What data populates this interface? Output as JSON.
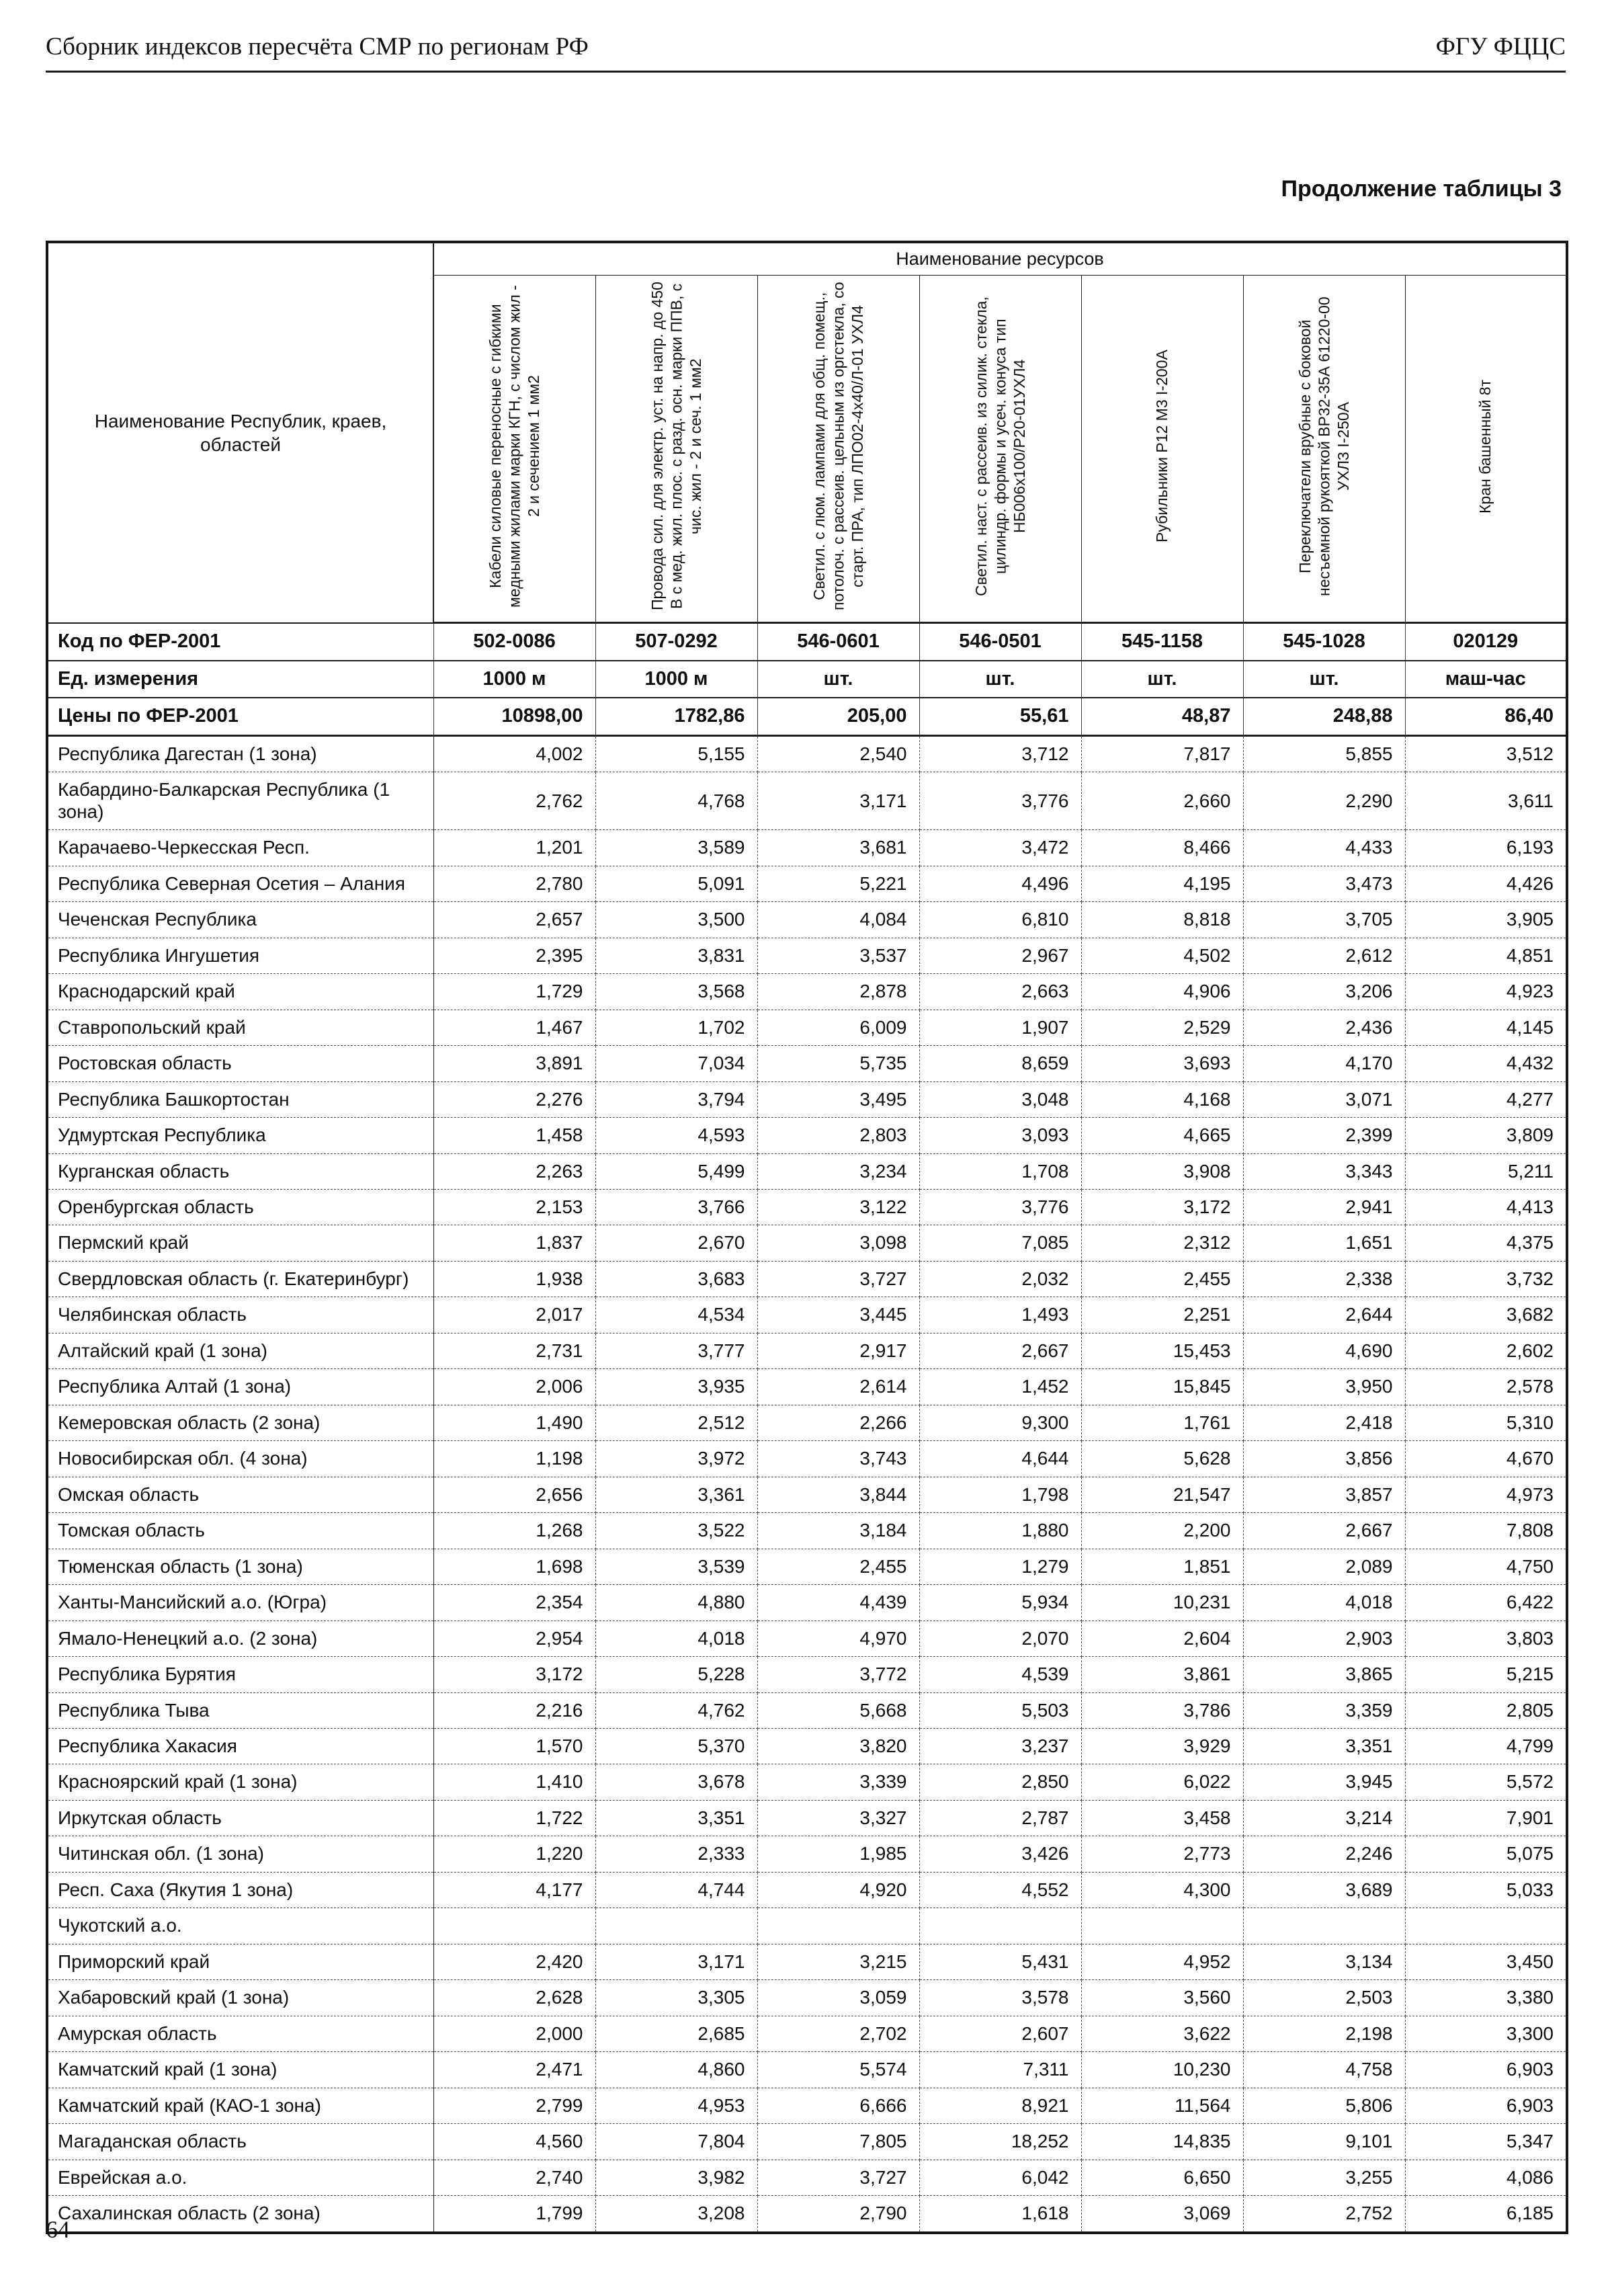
{
  "page": {
    "header_left": "Сборник индексов пересчёта СМР  по регионам РФ",
    "header_right": "ФГУ ФЦЦС",
    "caption": "Продолжение таблицы 3",
    "page_number": "64"
  },
  "table": {
    "region_header": "Наименование Республик, краев, областей",
    "resources_header": "Наименование ресурсов",
    "column_headers": [
      "Кабели силовые переносные с гибкими медными жилами марки КГН, с числом жил - 2 и сечением 1 мм2",
      "Провода сил. для электр. уст. на напр. до 450 В с мед. жил. плос. с разд. осн. марки ППВ, с чис. жил - 2 и сеч. 1 мм2",
      "Светил. с люм. лампами для общ. помещ., потолоч. с рассеив. цельным из оргстекла, со старт. ПРА, тип ЛПО02-4х40/Л-01 УХЛ4",
      "Светил. наст. с рассеив. из силик. стекла, цилиндр. формы и усеч. конуса тип НБ006х100/Р20-01УХЛ4",
      "Рубильники Р12 М3 I-200А",
      "Переключатели врубные с боковой несъемной рукояткой ВР32-35А 61220-00 УХЛ3 I-250А",
      "Кран башенный 8т"
    ],
    "meta_rows": [
      {
        "label": "Код по ФЕР-2001",
        "align": "c",
        "values": [
          "502-0086",
          "507-0292",
          "546-0601",
          "546-0501",
          "545-1158",
          "545-1028",
          "020129"
        ]
      },
      {
        "label": "Ед. измерения",
        "align": "c",
        "values": [
          "1000 м",
          "1000 м",
          "шт.",
          "шт.",
          "шт.",
          "шт.",
          "маш-час"
        ]
      },
      {
        "label": "Цены по ФЕР-2001",
        "align": "r",
        "values": [
          "10898,00",
          "1782,86",
          "205,00",
          "55,61",
          "48,87",
          "248,88",
          "86,40"
        ]
      }
    ],
    "rows": [
      {
        "region": "Республика Дагестан (1 зона)",
        "values": [
          "4,002",
          "5,155",
          "2,540",
          "3,712",
          "7,817",
          "5,855",
          "3,512"
        ]
      },
      {
        "region": "Кабардино-Балкарская Республика (1 зона)",
        "values": [
          "2,762",
          "4,768",
          "3,171",
          "3,776",
          "2,660",
          "2,290",
          "3,611"
        ]
      },
      {
        "region": "Карачаево-Черкесская Респ.",
        "values": [
          "1,201",
          "3,589",
          "3,681",
          "3,472",
          "8,466",
          "4,433",
          "6,193"
        ]
      },
      {
        "region": "Республика Северная Осетия – Алания",
        "values": [
          "2,780",
          "5,091",
          "5,221",
          "4,496",
          "4,195",
          "3,473",
          "4,426"
        ]
      },
      {
        "region": "Чеченская Республика",
        "values": [
          "2,657",
          "3,500",
          "4,084",
          "6,810",
          "8,818",
          "3,705",
          "3,905"
        ]
      },
      {
        "region": "Республика Ингушетия",
        "values": [
          "2,395",
          "3,831",
          "3,537",
          "2,967",
          "4,502",
          "2,612",
          "4,851"
        ]
      },
      {
        "region": "Краснодарский край",
        "values": [
          "1,729",
          "3,568",
          "2,878",
          "2,663",
          "4,906",
          "3,206",
          "4,923"
        ]
      },
      {
        "region": "Ставропольский край",
        "values": [
          "1,467",
          "1,702",
          "6,009",
          "1,907",
          "2,529",
          "2,436",
          "4,145"
        ]
      },
      {
        "region": "Ростовская область",
        "values": [
          "3,891",
          "7,034",
          "5,735",
          "8,659",
          "3,693",
          "4,170",
          "4,432"
        ]
      },
      {
        "region": "Республика Башкортостан",
        "values": [
          "2,276",
          "3,794",
          "3,495",
          "3,048",
          "4,168",
          "3,071",
          "4,277"
        ]
      },
      {
        "region": "Удмуртская Республика",
        "values": [
          "1,458",
          "4,593",
          "2,803",
          "3,093",
          "4,665",
          "2,399",
          "3,809"
        ]
      },
      {
        "region": "Курганская область",
        "values": [
          "2,263",
          "5,499",
          "3,234",
          "1,708",
          "3,908",
          "3,343",
          "5,211"
        ]
      },
      {
        "region": "Оренбургская область",
        "values": [
          "2,153",
          "3,766",
          "3,122",
          "3,776",
          "3,172",
          "2,941",
          "4,413"
        ]
      },
      {
        "region": "Пермский край",
        "values": [
          "1,837",
          "2,670",
          "3,098",
          "7,085",
          "2,312",
          "1,651",
          "4,375"
        ]
      },
      {
        "region": "Свердловская область (г. Екатеринбург)",
        "values": [
          "1,938",
          "3,683",
          "3,727",
          "2,032",
          "2,455",
          "2,338",
          "3,732"
        ]
      },
      {
        "region": "Челябинская область",
        "values": [
          "2,017",
          "4,534",
          "3,445",
          "1,493",
          "2,251",
          "2,644",
          "3,682"
        ]
      },
      {
        "region": "Алтайский край (1 зона)",
        "values": [
          "2,731",
          "3,777",
          "2,917",
          "2,667",
          "15,453",
          "4,690",
          "2,602"
        ]
      },
      {
        "region": "Республика Алтай (1 зона)",
        "values": [
          "2,006",
          "3,935",
          "2,614",
          "1,452",
          "15,845",
          "3,950",
          "2,578"
        ]
      },
      {
        "region": "Кемеровская область (2 зона)",
        "values": [
          "1,490",
          "2,512",
          "2,266",
          "9,300",
          "1,761",
          "2,418",
          "5,310"
        ]
      },
      {
        "region": "Новосибирская обл. (4 зона)",
        "values": [
          "1,198",
          "3,972",
          "3,743",
          "4,644",
          "5,628",
          "3,856",
          "4,670"
        ]
      },
      {
        "region": "Омская область",
        "values": [
          "2,656",
          "3,361",
          "3,844",
          "1,798",
          "21,547",
          "3,857",
          "4,973"
        ]
      },
      {
        "region": "Томская область",
        "values": [
          "1,268",
          "3,522",
          "3,184",
          "1,880",
          "2,200",
          "2,667",
          "7,808"
        ]
      },
      {
        "region": "Тюменская область (1 зона)",
        "values": [
          "1,698",
          "3,539",
          "2,455",
          "1,279",
          "1,851",
          "2,089",
          "4,750"
        ]
      },
      {
        "region": "Ханты-Мансийский а.о. (Югра)",
        "values": [
          "2,354",
          "4,880",
          "4,439",
          "5,934",
          "10,231",
          "4,018",
          "6,422"
        ]
      },
      {
        "region": "Ямало-Ненецкий а.о. (2 зона)",
        "values": [
          "2,954",
          "4,018",
          "4,970",
          "2,070",
          "2,604",
          "2,903",
          "3,803"
        ]
      },
      {
        "region": "Республика Бурятия",
        "values": [
          "3,172",
          "5,228",
          "3,772",
          "4,539",
          "3,861",
          "3,865",
          "5,215"
        ]
      },
      {
        "region": "Республика Тыва",
        "values": [
          "2,216",
          "4,762",
          "5,668",
          "5,503",
          "3,786",
          "3,359",
          "2,805"
        ]
      },
      {
        "region": "Республика Хакасия",
        "values": [
          "1,570",
          "5,370",
          "3,820",
          "3,237",
          "3,929",
          "3,351",
          "4,799"
        ]
      },
      {
        "region": "Красноярский край (1 зона)",
        "values": [
          "1,410",
          "3,678",
          "3,339",
          "2,850",
          "6,022",
          "3,945",
          "5,572"
        ]
      },
      {
        "region": "Иркутская область",
        "values": [
          "1,722",
          "3,351",
          "3,327",
          "2,787",
          "3,458",
          "3,214",
          "7,901"
        ]
      },
      {
        "region": "Читинская обл. (1 зона)",
        "values": [
          "1,220",
          "2,333",
          "1,985",
          "3,426",
          "2,773",
          "2,246",
          "5,075"
        ]
      },
      {
        "region": "Респ. Саха (Якутия 1 зона)",
        "values": [
          "4,177",
          "4,744",
          "4,920",
          "4,552",
          "4,300",
          "3,689",
          "5,033"
        ]
      },
      {
        "region": "Чукотский а.о.",
        "values": [
          "",
          "",
          "",
          "",
          "",
          "",
          ""
        ]
      },
      {
        "region": "Приморский край",
        "values": [
          "2,420",
          "3,171",
          "3,215",
          "5,431",
          "4,952",
          "3,134",
          "3,450"
        ]
      },
      {
        "region": "Хабаровский край (1 зона)",
        "values": [
          "2,628",
          "3,305",
          "3,059",
          "3,578",
          "3,560",
          "2,503",
          "3,380"
        ]
      },
      {
        "region": "Амурская область",
        "values": [
          "2,000",
          "2,685",
          "2,702",
          "2,607",
          "3,622",
          "2,198",
          "3,300"
        ]
      },
      {
        "region": "Камчатский край (1 зона)",
        "values": [
          "2,471",
          "4,860",
          "5,574",
          "7,311",
          "10,230",
          "4,758",
          "6,903"
        ]
      },
      {
        "region": "Камчатский край (КАО-1 зона)",
        "values": [
          "2,799",
          "4,953",
          "6,666",
          "8,921",
          "11,564",
          "5,806",
          "6,903"
        ]
      },
      {
        "region": "Магаданская область",
        "values": [
          "4,560",
          "7,804",
          "7,805",
          "18,252",
          "14,835",
          "9,101",
          "5,347"
        ]
      },
      {
        "region": "Еврейская а.о.",
        "values": [
          "2,740",
          "3,982",
          "3,727",
          "6,042",
          "6,650",
          "3,255",
          "4,086"
        ]
      },
      {
        "region": "Сахалинская область (2 зона)",
        "values": [
          "1,799",
          "3,208",
          "2,790",
          "1,618",
          "3,069",
          "2,752",
          "6,185"
        ]
      }
    ]
  }
}
